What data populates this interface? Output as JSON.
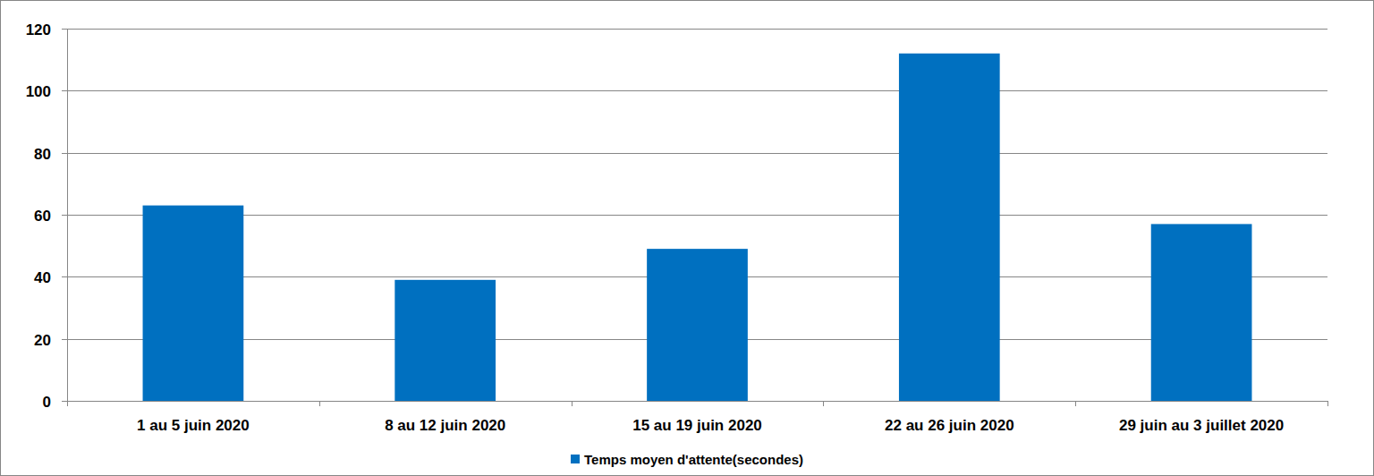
{
  "chart_data": {
    "type": "bar",
    "categories": [
      "1 au 5 juin 2020",
      "8 au 12 juin 2020",
      "15 au 19 juin 2020",
      "22 au 26 juin 2020",
      "29 juin au 3 juillet 2020"
    ],
    "series": [
      {
        "name": "Temps moyen d'attente(secondes)",
        "color": "#0070c0",
        "values": [
          63,
          39,
          49,
          112,
          57
        ]
      }
    ],
    "ylim": [
      0,
      120
    ],
    "yticks": [
      0,
      20,
      40,
      60,
      80,
      100,
      120
    ],
    "grid": true,
    "legend": "bottom"
  }
}
